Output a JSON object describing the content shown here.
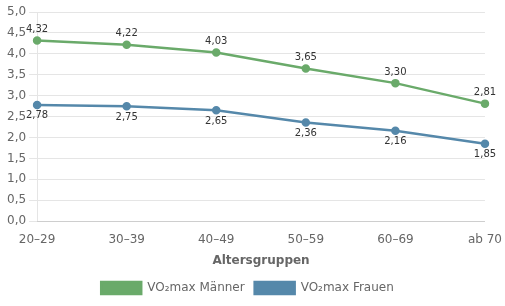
{
  "chart_data": {
    "type": "line",
    "xlabel": "Altersgruppen",
    "categories": [
      "20–29",
      "30–39",
      "40–49",
      "50–59",
      "60–69",
      "ab 70"
    ],
    "series": [
      {
        "name": "VO₂max Männer",
        "color": "#6aaa6a",
        "values": [
          4.32,
          4.22,
          4.03,
          3.65,
          3.3,
          2.81
        ],
        "value_labels": [
          "4,32",
          "4,22",
          "4,03",
          "3,65",
          "3,30",
          "2,81"
        ]
      },
      {
        "name": "VO₂max Frauen",
        "color": "#5588aa",
        "values": [
          2.78,
          2.75,
          2.65,
          2.36,
          2.16,
          1.85
        ],
        "value_labels": [
          "2,78",
          "2,75",
          "2,65",
          "2,36",
          "2,16",
          "1,85"
        ]
      }
    ],
    "ylim": [
      0,
      5.0
    ],
    "yticks": [
      {
        "value": 0,
        "label": "0,0"
      },
      {
        "value": 0.5,
        "label": "0,5"
      },
      {
        "value": 1.0,
        "label": "1,0"
      },
      {
        "value": 1.5,
        "label": "1,5"
      },
      {
        "value": 2.0,
        "label": "2,0"
      },
      {
        "value": 2.5,
        "label": "2,5"
      },
      {
        "value": 3.0,
        "label": "3,0"
      },
      {
        "value": 3.5,
        "label": "3,5"
      },
      {
        "value": 4.0,
        "label": "4,0"
      },
      {
        "value": 4.5,
        "label": "4,5"
      },
      {
        "value": 5.0,
        "label": "5,0"
      }
    ],
    "grid": true,
    "legend": "bottom",
    "data_labels": true
  }
}
